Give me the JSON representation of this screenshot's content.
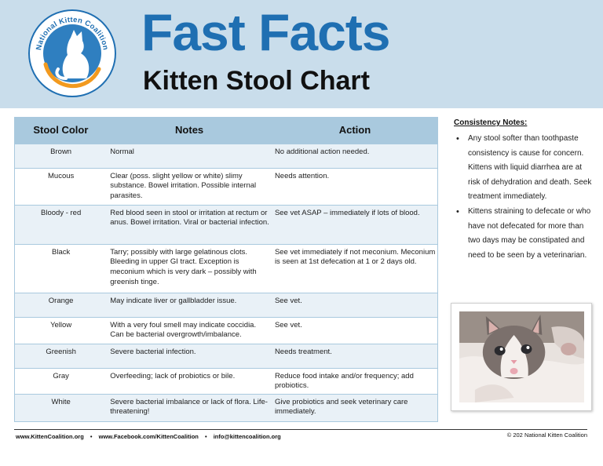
{
  "header": {
    "logo_text": "National Kitten Coalition",
    "title": "Fast Facts",
    "subtitle": "Kitten Stool Chart"
  },
  "table": {
    "columns": [
      "Stool Color",
      "Notes",
      "Action"
    ],
    "rows": [
      {
        "color": "Brown",
        "notes": "Normal",
        "action": "No additional action needed."
      },
      {
        "color": "Mucous",
        "notes": "Clear (poss. slight yellow or white) slimy substance. Bowel irritation. Possible internal parasites.",
        "action": "Needs attention."
      },
      {
        "color": "Bloody - red",
        "notes": "Red blood seen in stool or irritation at rectum or anus. Bowel irritation. Viral or bacterial infection.",
        "action": "See vet ASAP – immediately if lots of blood."
      },
      {
        "color": "Black",
        "notes": "Tarry; possibly with large gelatinous clots. Bleeding in upper GI tract. Exception is meconium which is very dark – possibly with greenish tinge.",
        "action": "See vet immediately if not meconium. Meconium is seen at 1st defecation at 1 or 2 days old."
      },
      {
        "color": "Orange",
        "notes": "May indicate liver or gallbladder issue.",
        "action": "See vet."
      },
      {
        "color": "Yellow",
        "notes": "With a very foul smell may indicate coccidia. Can be bacterial overgrowth/imbalance.",
        "action": "See vet."
      },
      {
        "color": "Greenish",
        "notes": "Severe bacterial infection.",
        "action": "Needs treatment."
      },
      {
        "color": "Gray",
        "notes": "Overfeeding; lack of probiotics or bile.",
        "action": "Reduce food intake and/or frequency; add probiotics."
      },
      {
        "color": "White",
        "notes": "Severe bacterial imbalance or lack of flora. Life-threatening!",
        "action": "Give probiotics and seek veterinary care immediately."
      }
    ]
  },
  "sidebar": {
    "heading": "Consistency Notes:",
    "bullets": [
      "Any stool softer than toothpaste consistency is cause for concern. Kittens with liquid diarrhea are at risk of dehydration and death. Seek treatment immediately.",
      "Kittens straining to defecate or who have not defecated for more than two days may be constipated and need to be seen by a veterinarian."
    ]
  },
  "footer": {
    "website": "www.KittenCoalition.org",
    "facebook": "www.Facebook.com/KittenCoalition",
    "email": "info@kittencoalition.org",
    "separator": "•",
    "copyright": "© 202   National Kitten Coalition"
  },
  "colors": {
    "header_bg": "#c9ddeb",
    "title_blue": "#1f6fb2",
    "table_header": "#a9c9de",
    "row_alt": "#e9f1f7",
    "logo_orange": "#f29a1f"
  },
  "icons": [
    "cat-silhouette-icon"
  ]
}
